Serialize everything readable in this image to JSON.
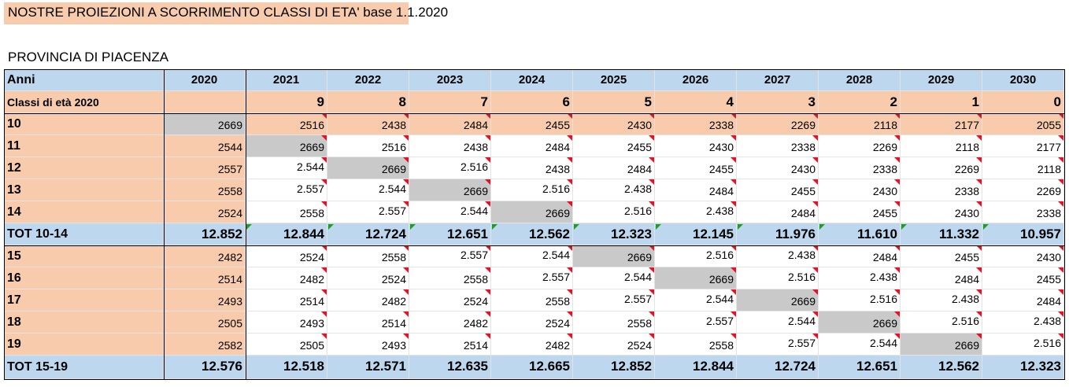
{
  "title": "NOSTRE PROIEZIONI A SCORRIMENTO CLASSI DI ETA' base 1.1.2020",
  "subtitle": "PROVINCIA DI PIACENZA",
  "colors": {
    "peach": "#f8cbad",
    "blue": "#bdd7ee",
    "gray": "#c9c9c9",
    "white": "#ffffff",
    "red_flag": "#e81123",
    "green_flag": "#1e9e1e"
  },
  "header": {
    "label": "Anni",
    "years": [
      "2020",
      "2021",
      "2022",
      "2023",
      "2024",
      "2025",
      "2026",
      "2027",
      "2028",
      "2029",
      "2030"
    ]
  },
  "classes": {
    "label": "Classi di età 2020",
    "values": [
      "",
      "9",
      "8",
      "7",
      "6",
      "5",
      "4",
      "3",
      "2",
      "1",
      "0"
    ]
  },
  "rows1": [
    {
      "label": "10",
      "values": [
        "2669",
        "2516",
        "2438",
        "2484",
        "2455",
        "2430",
        "2338",
        "2269",
        "2118",
        "2177",
        "2055"
      ]
    },
    {
      "label": "11",
      "values": [
        "2544",
        "2669",
        "2516",
        "2438",
        "2484",
        "2455",
        "2430",
        "2338",
        "2269",
        "2118",
        "2177"
      ]
    },
    {
      "label": "12",
      "values": [
        "2557",
        "2.544",
        "2669",
        "2.516",
        "2438",
        "2484",
        "2455",
        "2430",
        "2338",
        "2269",
        "2118"
      ]
    },
    {
      "label": "13",
      "values": [
        "2558",
        "2.557",
        "2.544",
        "2669",
        "2.516",
        "2.438",
        "2484",
        "2455",
        "2430",
        "2338",
        "2269"
      ]
    },
    {
      "label": "14",
      "values": [
        "2524",
        "2558",
        "2.557",
        "2.544",
        "2669",
        "2.516",
        "2.438",
        "2484",
        "2455",
        "2430",
        "2338"
      ]
    }
  ],
  "total1": {
    "label": "TOT 10-14",
    "values": [
      "12.852",
      "12.844",
      "12.724",
      "12.651",
      "12.562",
      "12.323",
      "12.145",
      "11.976",
      "11.610",
      "11.332",
      "10.957"
    ]
  },
  "rows2": [
    {
      "label": "15",
      "values": [
        "2482",
        "2524",
        "2558",
        "2.557",
        "2.544",
        "2669",
        "2.516",
        "2.438",
        "2484",
        "2455",
        "2430"
      ]
    },
    {
      "label": "16",
      "values": [
        "2514",
        "2482",
        "2524",
        "2558",
        "2.557",
        "2.544",
        "2669",
        "2.516",
        "2.438",
        "2484",
        "2455"
      ]
    },
    {
      "label": "17",
      "values": [
        "2493",
        "2514",
        "2482",
        "2524",
        "2558",
        "2.557",
        "2.544",
        "2669",
        "2.516",
        "2.438",
        "2484"
      ]
    },
    {
      "label": "18",
      "values": [
        "2505",
        "2493",
        "2514",
        "2482",
        "2524",
        "2558",
        "2.557",
        "2.544",
        "2669",
        "2.516",
        "2.438"
      ]
    },
    {
      "label": "19",
      "values": [
        "2582",
        "2505",
        "2493",
        "2514",
        "2482",
        "2524",
        "2558",
        "2.557",
        "2.544",
        "2669",
        "2.516"
      ]
    }
  ],
  "total2": {
    "label": "TOT 15-19",
    "values": [
      "12.576",
      "12.518",
      "12.571",
      "12.635",
      "12.665",
      "12.852",
      "12.844",
      "12.724",
      "12.651",
      "12.562",
      "12.323"
    ]
  }
}
